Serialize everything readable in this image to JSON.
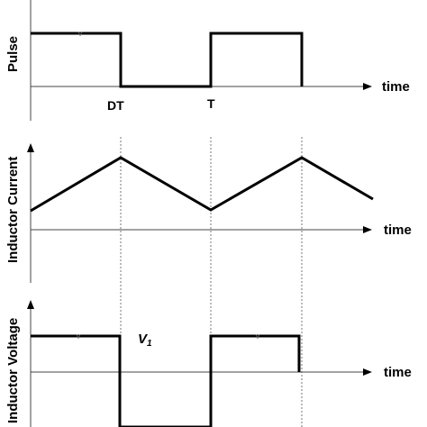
{
  "diagram": {
    "panels": [
      {
        "id": "pulse",
        "ylabel": "Pulse",
        "xlabel": "time"
      },
      {
        "id": "current",
        "ylabel": "Inductor Current",
        "xlabel": "time"
      },
      {
        "id": "voltage",
        "ylabel": "Inductor Voltage",
        "xlabel": "time"
      }
    ],
    "markers": {
      "dt": "DT",
      "t": "T"
    },
    "annotations": {
      "v1_main": "V",
      "v1_sub": "1"
    }
  },
  "colors": {
    "line": "#000000",
    "axis": "#444444",
    "guide": "#777777"
  }
}
